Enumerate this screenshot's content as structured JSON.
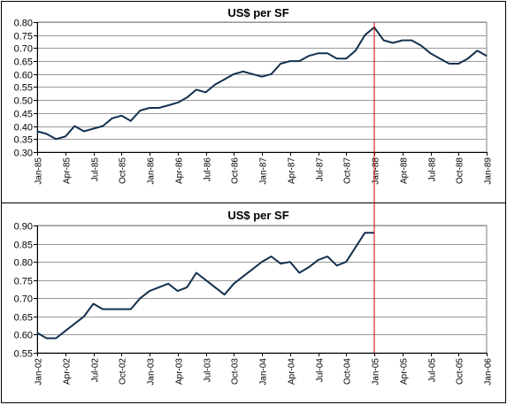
{
  "colors": {
    "series_line": "#14304f",
    "marker_line": "#cc0000",
    "grid": "#9a9a9a",
    "plot_bg": "#ffffff"
  },
  "chart_data": [
    {
      "type": "line",
      "title": "US$ per SF",
      "xlabel": "",
      "ylabel": "",
      "ylim": [
        0.3,
        0.8
      ],
      "yticks": [
        "0.30",
        "0.35",
        "0.40",
        "0.45",
        "0.50",
        "0.55",
        "0.60",
        "0.65",
        "0.70",
        "0.75",
        "0.80"
      ],
      "x_range": [
        "Jan-85",
        "Jan-89"
      ],
      "x_tick_labels": [
        "Jan-85",
        "Apr-85",
        "Jul-85",
        "Oct-85",
        "Jan-86",
        "Apr-86",
        "Jul-86",
        "Oct-86",
        "Jan-87",
        "Apr-87",
        "Jul-87",
        "Oct-87",
        "Jan-88",
        "Apr-88",
        "Jul-88",
        "Oct-88",
        "Jan-89"
      ],
      "grid": "horizontal",
      "legend": "none",
      "marker_line_at": "Jan-88",
      "series": [
        {
          "x": [
            "Jan-85",
            "Feb-85",
            "Mar-85",
            "Apr-85",
            "May-85",
            "Jun-85",
            "Jul-85",
            "Aug-85",
            "Sep-85",
            "Oct-85",
            "Nov-85",
            "Dec-85",
            "Jan-86",
            "Feb-86",
            "Mar-86",
            "Apr-86",
            "May-86",
            "Jun-86",
            "Jul-86",
            "Aug-86",
            "Sep-86",
            "Oct-86",
            "Nov-86",
            "Dec-86",
            "Jan-87",
            "Feb-87",
            "Mar-87",
            "Apr-87",
            "May-87",
            "Jun-87",
            "Jul-87",
            "Aug-87",
            "Sep-87",
            "Oct-87",
            "Nov-87",
            "Dec-87",
            "Jan-88",
            "Feb-88",
            "Mar-88",
            "Apr-88",
            "May-88",
            "Jun-88",
            "Jul-88",
            "Aug-88",
            "Sep-88",
            "Oct-88",
            "Nov-88",
            "Dec-88",
            "Jan-89"
          ],
          "values": [
            0.38,
            0.37,
            0.35,
            0.36,
            0.4,
            0.38,
            0.39,
            0.4,
            0.43,
            0.44,
            0.42,
            0.46,
            0.47,
            0.47,
            0.48,
            0.49,
            0.51,
            0.54,
            0.53,
            0.56,
            0.58,
            0.6,
            0.61,
            0.6,
            0.59,
            0.6,
            0.64,
            0.65,
            0.65,
            0.67,
            0.68,
            0.68,
            0.66,
            0.66,
            0.69,
            0.75,
            0.78,
            0.73,
            0.72,
            0.73,
            0.73,
            0.71,
            0.68,
            0.66,
            0.64,
            0.64,
            0.66,
            0.69,
            0.67
          ]
        }
      ]
    },
    {
      "type": "line",
      "title": "US$ per SF",
      "xlabel": "",
      "ylabel": "",
      "ylim": [
        0.55,
        0.9
      ],
      "yticks": [
        "0.55",
        "0.60",
        "0.65",
        "0.70",
        "0.75",
        "0.80",
        "0.85",
        "0.90"
      ],
      "x_range": [
        "Jan-02",
        "Jan-06"
      ],
      "x_tick_labels": [
        "Jan-02",
        "Apr-02",
        "Jul-02",
        "Oct-02",
        "Jan-03",
        "Apr-03",
        "Jul-03",
        "Oct-03",
        "Jan-04",
        "Apr-04",
        "Jul-04",
        "Oct-04",
        "Jan-05",
        "Apr-05",
        "Jul-05",
        "Oct-05",
        "Jan-06"
      ],
      "grid": "horizontal",
      "legend": "none",
      "marker_line_at": "Jan-05",
      "series": [
        {
          "x": [
            "Jan-02",
            "Feb-02",
            "Mar-02",
            "Apr-02",
            "May-02",
            "Jun-02",
            "Jul-02",
            "Aug-02",
            "Sep-02",
            "Oct-02",
            "Nov-02",
            "Dec-02",
            "Jan-03",
            "Feb-03",
            "Mar-03",
            "Apr-03",
            "May-03",
            "Jun-03",
            "Jul-03",
            "Aug-03",
            "Sep-03",
            "Oct-03",
            "Nov-03",
            "Dec-03",
            "Jan-04",
            "Feb-04",
            "Mar-04",
            "Apr-04",
            "May-04",
            "Jun-04",
            "Jul-04",
            "Aug-04",
            "Sep-04",
            "Oct-04",
            "Nov-04",
            "Dec-04",
            "Jan-05"
          ],
          "values": [
            0.605,
            0.59,
            0.59,
            0.61,
            0.63,
            0.65,
            0.685,
            0.67,
            0.67,
            0.67,
            0.67,
            0.7,
            0.72,
            0.73,
            0.74,
            0.72,
            0.73,
            0.77,
            0.75,
            0.73,
            0.71,
            0.74,
            0.76,
            0.78,
            0.8,
            0.815,
            0.795,
            0.8,
            0.77,
            0.785,
            0.805,
            0.815,
            0.79,
            0.8,
            0.84,
            0.88,
            0.88
          ]
        }
      ]
    }
  ]
}
